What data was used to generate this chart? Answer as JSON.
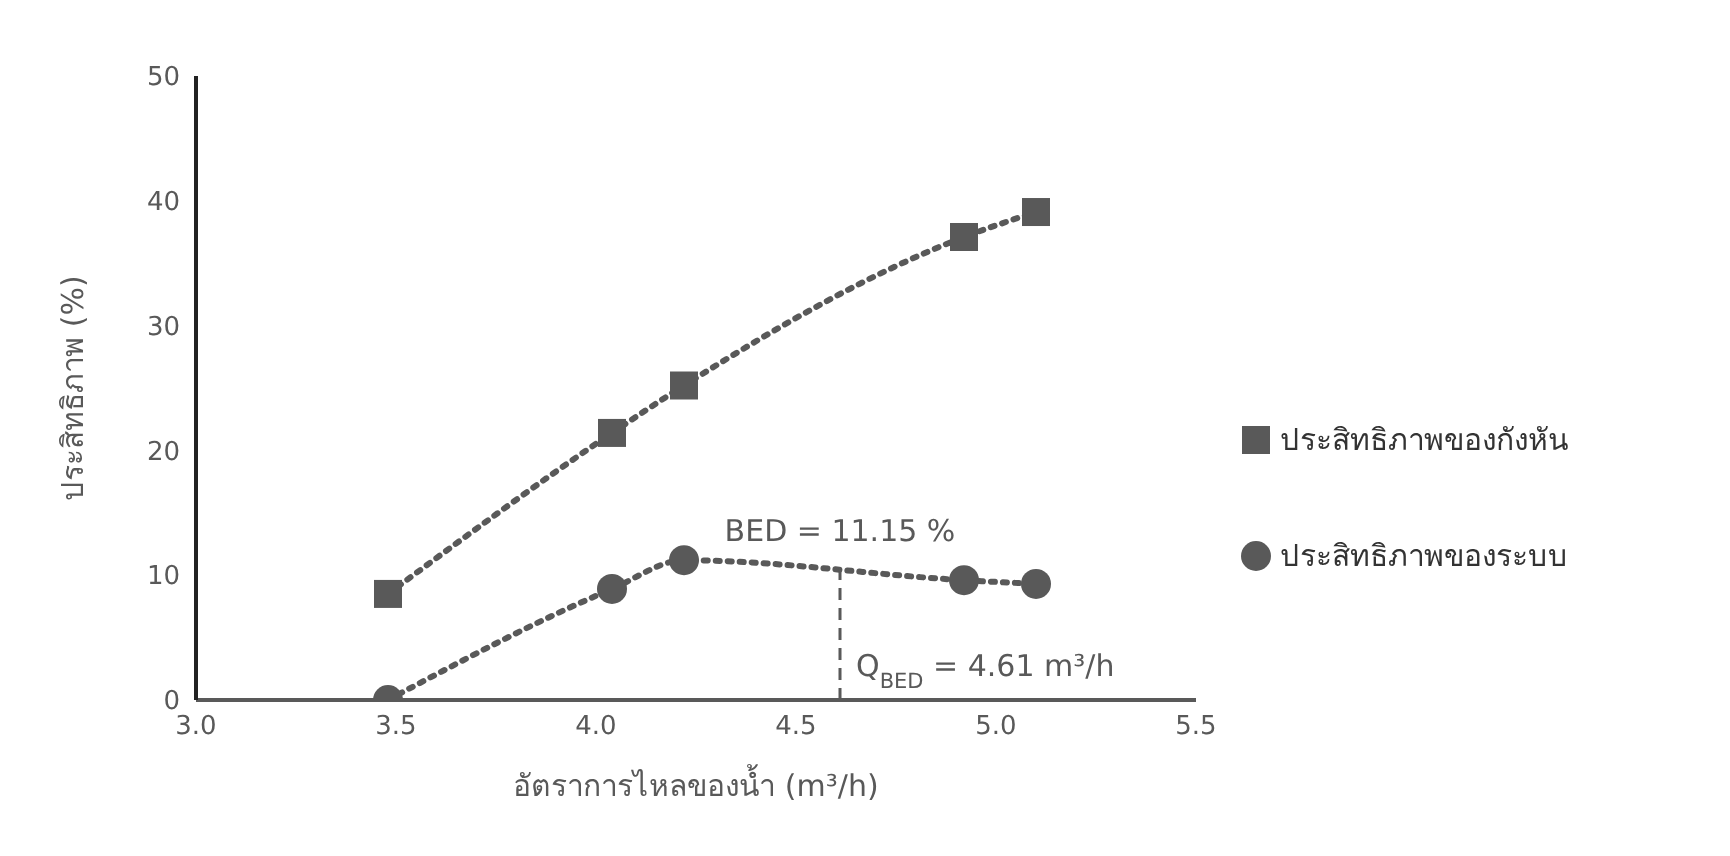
{
  "chart_data": {
    "type": "line",
    "xlabel": "อัตราการไหลของน้ำ (m³/h)",
    "ylabel": "ประสิทธิภาพ (%)",
    "xlim": [
      3,
      5.5
    ],
    "xticks": [
      {
        "value": 3,
        "label": "3.0"
      },
      {
        "value": 3.5,
        "label": "3.5"
      },
      {
        "value": 4,
        "label": "4.0"
      },
      {
        "value": 4.5,
        "label": "4.5"
      },
      {
        "value": 5,
        "label": "5.0"
      },
      {
        "value": 5.5,
        "label": "5.5"
      }
    ],
    "ylim": [
      0,
      50
    ],
    "yticks": [
      0,
      10,
      20,
      30,
      40,
      50
    ],
    "legend": "right",
    "line_style": "dotted",
    "series": [
      {
        "name": "ประสิทธิภาพของกังหัน",
        "color": "#595959",
        "marker": "square",
        "x": [
          3.48,
          4.04,
          4.22,
          4.92,
          5.1
        ],
        "values": [
          8.5,
          21.4,
          25.2,
          37.1,
          39.1
        ]
      },
      {
        "name": "ประสิทธิภาพของระบบ",
        "color": "#595959",
        "marker": "circle",
        "x": [
          3.48,
          4.04,
          4.22,
          4.92,
          5.1
        ],
        "values": [
          0,
          8.9,
          11.2,
          9.6,
          9.3
        ]
      }
    ],
    "ref_lines": [
      {
        "axis": "x",
        "value": 4.61,
        "label": "Q$_{BED}$ = 4.61 m³/h",
        "color": "#595959",
        "line_style": "dashed"
      }
    ],
    "annotations": [
      {
        "text": "BED = 11.15 %",
        "x": 4.61,
        "y": 11.15
      }
    ]
  }
}
